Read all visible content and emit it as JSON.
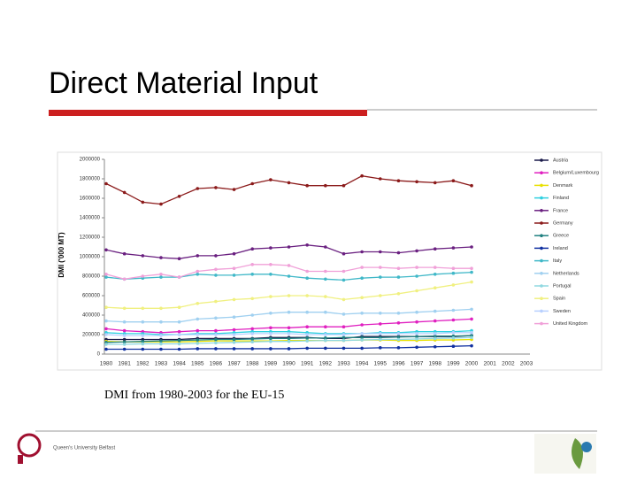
{
  "slide": {
    "title": "Direct Material Input",
    "caption": "DMI from 1980-2003 for the EU-15",
    "logo_text": "Queen's University Belfast"
  },
  "chart_data": {
    "type": "line",
    "y_label": "DMI ('000 MT)",
    "categories": [
      "1980",
      "1981",
      "1982",
      "1983",
      "1984",
      "1985",
      "1986",
      "1987",
      "1988",
      "1989",
      "1990",
      "1991",
      "1992",
      "1993",
      "1994",
      "1995",
      "1996",
      "1997",
      "1998",
      "1999",
      "2000",
      "2001",
      "2002",
      "2003"
    ],
    "ylim": [
      0,
      2000000
    ],
    "yticks": [
      0,
      200000,
      400000,
      600000,
      800000,
      1000000,
      1200000,
      1400000,
      1600000,
      1800000,
      2000000
    ],
    "legend": "right",
    "series": [
      {
        "name": "Austria",
        "color": "#1a1a4a",
        "values": [
          150000,
          150000,
          150000,
          150000,
          150000,
          160000,
          160000,
          160000,
          160000,
          170000,
          170000,
          170000,
          160000,
          160000,
          180000,
          180000,
          180000,
          180000,
          180000,
          180000,
          190000,
          null,
          null,
          null
        ]
      },
      {
        "name": "Belgium/Luxembourg",
        "color": "#e020c0",
        "values": [
          260000,
          240000,
          230000,
          220000,
          230000,
          240000,
          240000,
          250000,
          260000,
          270000,
          270000,
          280000,
          280000,
          280000,
          300000,
          310000,
          320000,
          330000,
          340000,
          350000,
          360000,
          null,
          null,
          null
        ]
      },
      {
        "name": "Denmark",
        "color": "#e8e000",
        "values": [
          130000,
          125000,
          125000,
          125000,
          125000,
          130000,
          135000,
          135000,
          135000,
          135000,
          140000,
          140000,
          140000,
          140000,
          145000,
          145000,
          140000,
          140000,
          145000,
          145000,
          150000,
          null,
          null,
          null
        ]
      },
      {
        "name": "Finland",
        "color": "#30d0e0",
        "values": [
          220000,
          210000,
          210000,
          200000,
          200000,
          210000,
          210000,
          220000,
          230000,
          230000,
          230000,
          220000,
          210000,
          210000,
          210000,
          220000,
          220000,
          230000,
          230000,
          230000,
          240000,
          null,
          null,
          null
        ]
      },
      {
        "name": "France",
        "color": "#6a2080",
        "values": [
          1070000,
          1030000,
          1010000,
          990000,
          980000,
          1010000,
          1010000,
          1030000,
          1080000,
          1090000,
          1100000,
          1120000,
          1100000,
          1030000,
          1050000,
          1050000,
          1040000,
          1060000,
          1080000,
          1090000,
          1100000,
          null,
          null,
          null
        ]
      },
      {
        "name": "Germany",
        "color": "#8b1a1a",
        "values": [
          1750000,
          1660000,
          1560000,
          1540000,
          1620000,
          1700000,
          1710000,
          1690000,
          1750000,
          1790000,
          1760000,
          1730000,
          1730000,
          1730000,
          1830000,
          1800000,
          1780000,
          1770000,
          1760000,
          1780000,
          1730000,
          null,
          null,
          null
        ]
      },
      {
        "name": "Greece",
        "color": "#208080",
        "values": [
          120000,
          125000,
          130000,
          135000,
          140000,
          145000,
          150000,
          150000,
          155000,
          160000,
          160000,
          165000,
          165000,
          170000,
          170000,
          170000,
          175000,
          180000,
          185000,
          185000,
          190000,
          null,
          null,
          null
        ]
      },
      {
        "name": "Ireland",
        "color": "#1030a0",
        "values": [
          50000,
          50000,
          50000,
          50000,
          50000,
          55000,
          55000,
          55000,
          55000,
          55000,
          55000,
          60000,
          60000,
          60000,
          60000,
          65000,
          65000,
          70000,
          75000,
          80000,
          85000,
          null,
          null,
          null
        ]
      },
      {
        "name": "Italy",
        "color": "#40b8c8",
        "values": [
          790000,
          770000,
          780000,
          790000,
          790000,
          820000,
          810000,
          810000,
          820000,
          820000,
          800000,
          780000,
          770000,
          760000,
          780000,
          790000,
          790000,
          800000,
          820000,
          830000,
          840000,
          null,
          null,
          null
        ]
      },
      {
        "name": "Netherlands",
        "color": "#a0d0f0",
        "values": [
          340000,
          330000,
          330000,
          330000,
          330000,
          360000,
          370000,
          380000,
          400000,
          420000,
          430000,
          430000,
          430000,
          410000,
          420000,
          420000,
          420000,
          430000,
          440000,
          450000,
          460000,
          null,
          null,
          null
        ]
      },
      {
        "name": "Portugal",
        "color": "#90d8e0",
        "values": [
          100000,
          100000,
          105000,
          105000,
          105000,
          110000,
          115000,
          120000,
          125000,
          130000,
          130000,
          135000,
          140000,
          140000,
          145000,
          150000,
          150000,
          155000,
          160000,
          165000,
          170000,
          null,
          null,
          null
        ]
      },
      {
        "name": "Spain",
        "color": "#f0f080",
        "values": [
          480000,
          470000,
          470000,
          470000,
          480000,
          520000,
          540000,
          560000,
          570000,
          590000,
          600000,
          600000,
          590000,
          560000,
          580000,
          600000,
          620000,
          650000,
          680000,
          710000,
          740000,
          null,
          null,
          null
        ]
      },
      {
        "name": "Sweden",
        "color": "#b8d0ff",
        "values": [
          200000,
          190000,
          190000,
          190000,
          200000,
          200000,
          200000,
          200000,
          210000,
          210000,
          210000,
          200000,
          200000,
          200000,
          210000,
          210000,
          210000,
          210000,
          210000,
          220000,
          220000,
          null,
          null,
          null
        ]
      },
      {
        "name": "United Kingdom",
        "color": "#f0a0d8",
        "values": [
          820000,
          770000,
          800000,
          820000,
          790000,
          850000,
          870000,
          880000,
          920000,
          920000,
          910000,
          850000,
          850000,
          850000,
          890000,
          890000,
          880000,
          890000,
          890000,
          880000,
          880000,
          null,
          null,
          null
        ]
      }
    ]
  }
}
